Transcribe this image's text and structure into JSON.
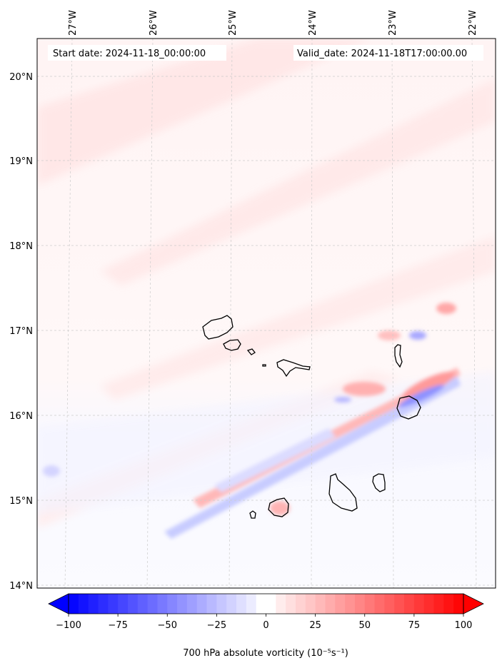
{
  "header": {
    "start_date": "Start date: 2024-11-18_00:00:00",
    "valid_date": "Valid_date: 2024-11-18T17:00:00.00"
  },
  "map": {
    "lon_labels": [
      "27°W",
      "26°W",
      "25°W",
      "24°W",
      "23°W",
      "22°W"
    ],
    "lat_labels": [
      "20°N",
      "19°N",
      "18°N",
      "17°N",
      "16°N",
      "15°N",
      "14°N"
    ],
    "gridlines": true
  },
  "colorbar": {
    "ticks": [
      "−100",
      "−75",
      "−50",
      "−25",
      "0",
      "25",
      "50",
      "75",
      "100"
    ],
    "min": -100,
    "max": 100,
    "colormap": "bwr",
    "label": "700 hPa absolute vorticity (10⁻⁵s⁻¹)"
  },
  "colors": {
    "negative": "#0000ff",
    "neutral": "#ffffff",
    "positive": "#ff0000",
    "coastline": "#000000"
  }
}
